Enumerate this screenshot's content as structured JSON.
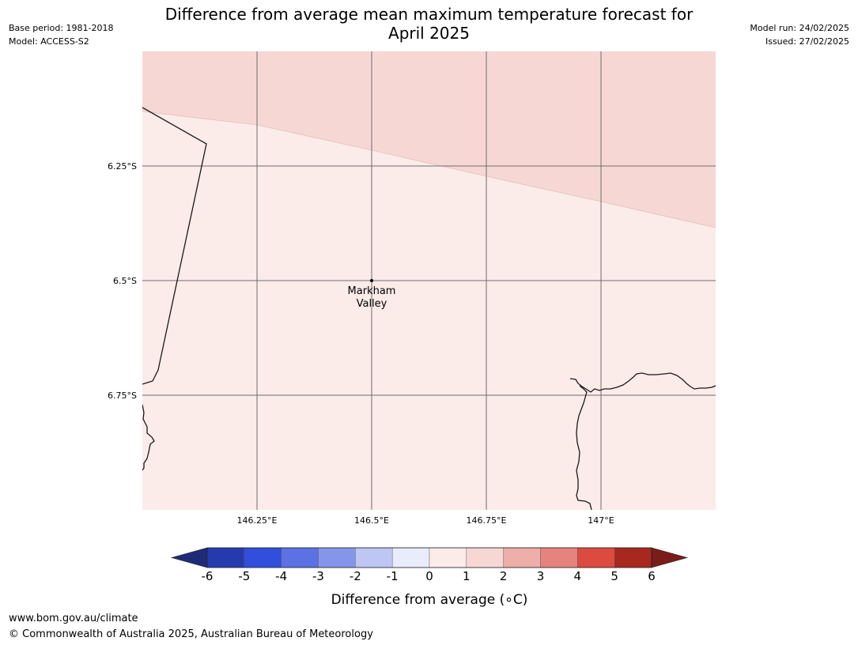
{
  "title": {
    "line1": "Difference from average mean maximum temperature forecast for",
    "line2": "April 2025"
  },
  "meta_left": {
    "base_period": "Base period: 1981-2018",
    "model": "Model: ACCESS-S2"
  },
  "meta_right": {
    "model_run": "Model run: 24/02/2025",
    "issued": "Issued: 27/02/2025"
  },
  "map": {
    "extent": {
      "lon_min": 146.0,
      "lon_max": 147.25,
      "lat_min": -7.0,
      "lat_max": -6.0
    },
    "lat_labels": [
      {
        "value": -6.25,
        "label": "6.25°S"
      },
      {
        "value": -6.5,
        "label": "6.5°S"
      },
      {
        "value": -6.75,
        "label": "6.75°S"
      }
    ],
    "lon_labels": [
      {
        "value": 146.25,
        "label": "146.25°E"
      },
      {
        "value": 146.5,
        "label": "146.5°E"
      },
      {
        "value": 146.75,
        "label": "146.75°E"
      },
      {
        "value": 147.0,
        "label": "147°E"
      }
    ],
    "location": {
      "lon": 146.5,
      "lat": -6.5,
      "label_line1": "Markham",
      "label_line2": "Valley"
    },
    "fill_colors": {
      "band_0_1": "#fbebe9",
      "band_1_2": "#f6d7d4"
    }
  },
  "colorbar": {
    "label": "Difference from average (",
    "unit": "∘C)",
    "ticks": [
      "-6",
      "-5",
      "-4",
      "-3",
      "-2",
      "-1",
      "0",
      "1",
      "2",
      "3",
      "4",
      "5",
      "6"
    ],
    "under_color": "#1e2c78",
    "over_color": "#7a1c19",
    "colors": [
      "#263ab0",
      "#314fdc",
      "#5b71e4",
      "#8596ea",
      "#bec6f4",
      "#e9ecfb",
      "#fbebe9",
      "#f6d7d4",
      "#eeaea9",
      "#e7837e",
      "#dc4a40",
      "#a8281f"
    ]
  },
  "footer": {
    "url": "www.bom.gov.au/climate",
    "copyright": "© Commonwealth of Australia 2025, Australian Bureau of Meteorology"
  }
}
